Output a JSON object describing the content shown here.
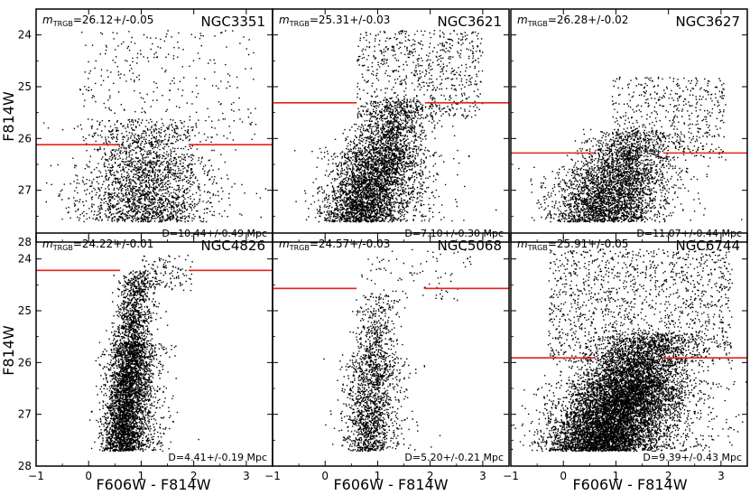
{
  "figure": {
    "xlabel": "F606W - F814W",
    "ylabel": "F814W"
  },
  "chart_data": [
    {
      "type": "scatter",
      "name": "NGC3351",
      "trgb_prefix": "m",
      "trgb_sub": "TRGB",
      "trgb_value": "=26.12+/-0.05",
      "distance": "D=10.44+/-0.49 Mpc",
      "trgb_mag": 26.12,
      "xlim": [
        -1,
        3.5
      ],
      "ylim": [
        28,
        23.5
      ],
      "xticks": [
        "−1",
        "0",
        "1",
        "2",
        "3"
      ],
      "yticks": [
        "24",
        "25",
        "26",
        "27",
        "28"
      ],
      "stars": {
        "n": 2200,
        "color_center": 1.05,
        "color_spread": 0.55,
        "mag_min": 25.6,
        "mag_max": 27.6,
        "faint_frac": 0.85,
        "bright_n": 320,
        "bright_range": [
          23.9,
          26.1
        ],
        "bright_color": [
          -0.2,
          3.2
        ]
      }
    },
    {
      "type": "scatter",
      "name": "NGC3621",
      "trgb_prefix": "m",
      "trgb_sub": "TRGB",
      "trgb_value": "=25.31+/-0.03",
      "distance": "D=7.10+/-0.30 Mpc",
      "trgb_mag": 25.31,
      "xlim": [
        -1,
        3.5
      ],
      "ylim": [
        28,
        23.5
      ],
      "xticks": [
        "−1",
        "0",
        "1",
        "2",
        "3"
      ],
      "yticks": [],
      "stars": {
        "n": 4200,
        "color_center": 1.1,
        "color_spread": 0.35,
        "mag_min": 25.2,
        "mag_max": 27.6,
        "slope": 0.45,
        "faint_frac": 0.8,
        "bright_n": 700,
        "bright_range": [
          23.9,
          25.6
        ],
        "bright_color": [
          0.6,
          3.0
        ]
      }
    },
    {
      "type": "scatter",
      "name": "NGC3627",
      "trgb_prefix": "m",
      "trgb_sub": "TRGB",
      "trgb_value": "=26.28+/-0.02",
      "distance": "D=11.07+/-0.44 Mpc",
      "trgb_mag": 26.28,
      "xlim": [
        -1,
        3.5
      ],
      "ylim": [
        28,
        23.5
      ],
      "xticks": [
        "−1",
        "0",
        "1",
        "2",
        "3"
      ],
      "yticks": [],
      "stars": {
        "n": 3400,
        "color_center": 1.0,
        "color_spread": 0.45,
        "mag_min": 25.8,
        "mag_max": 27.6,
        "slope": 0.5,
        "faint_frac": 0.85,
        "bright_n": 500,
        "bright_range": [
          24.8,
          26.4
        ],
        "bright_color": [
          0.9,
          3.1
        ]
      }
    },
    {
      "type": "scatter",
      "name": "NGC4826",
      "trgb_prefix": "m",
      "trgb_sub": "TRGB",
      "trgb_value": "=24.22+/-0.01",
      "distance": "D=4.41+/-0.19 Mpc",
      "trgb_mag": 24.22,
      "xlim": [
        -1,
        3.5
      ],
      "ylim": [
        28,
        23.5
      ],
      "xticks": [
        "−1",
        "0",
        "1",
        "2",
        "3"
      ],
      "yticks": [
        "24",
        "25",
        "26",
        "27",
        "28"
      ],
      "stars": {
        "n": 4500,
        "color_center": 0.85,
        "color_spread": 0.18,
        "mag_min": 24.2,
        "mag_max": 27.7,
        "slope": 0.12,
        "faint_frac": 0.75,
        "bright_n": 120,
        "bright_range": [
          23.9,
          24.6
        ],
        "bright_color": [
          1.0,
          2.0
        ]
      }
    },
    {
      "type": "scatter",
      "name": "NGC5068",
      "trgb_prefix": "m",
      "trgb_sub": "TRGB",
      "trgb_value": "=24.57+/-0.03",
      "distance": "D=5.20+/-0.21 Mpc",
      "trgb_mag": 24.57,
      "xlim": [
        -1,
        3.5
      ],
      "ylim": [
        28,
        23.5
      ],
      "xticks": [
        "−1",
        "0",
        "1",
        "2",
        "3"
      ],
      "yticks": [],
      "stars": {
        "n": 1800,
        "color_center": 0.95,
        "color_spread": 0.2,
        "mag_min": 24.6,
        "mag_max": 27.7,
        "slope": 0.1,
        "faint_frac": 0.7,
        "bright_n": 90,
        "bright_range": [
          23.8,
          24.8
        ],
        "bright_color": [
          0.6,
          2.8
        ]
      }
    },
    {
      "type": "scatter",
      "name": "NGC6744",
      "trgb_prefix": "m",
      "trgb_sub": "TRGB",
      "trgb_value": "=25.91+/-0.05",
      "distance": "D=9.39+/-0.43 Mpc",
      "trgb_mag": 25.91,
      "xlim": [
        -1,
        3.5
      ],
      "ylim": [
        28,
        23.5
      ],
      "xticks": [
        "−1",
        "0",
        "1",
        "2",
        "3"
      ],
      "yticks": [],
      "stars": {
        "n": 9000,
        "color_center": 1.25,
        "color_spread": 0.5,
        "mag_min": 25.4,
        "mag_max": 27.7,
        "slope": 0.6,
        "faint_frac": 0.85,
        "bright_n": 1400,
        "bright_range": [
          23.8,
          26.0
        ],
        "bright_color": [
          -0.3,
          3.2
        ]
      }
    }
  ],
  "colors": {
    "trgb_line": "#e8221b",
    "stars": "#000000"
  }
}
